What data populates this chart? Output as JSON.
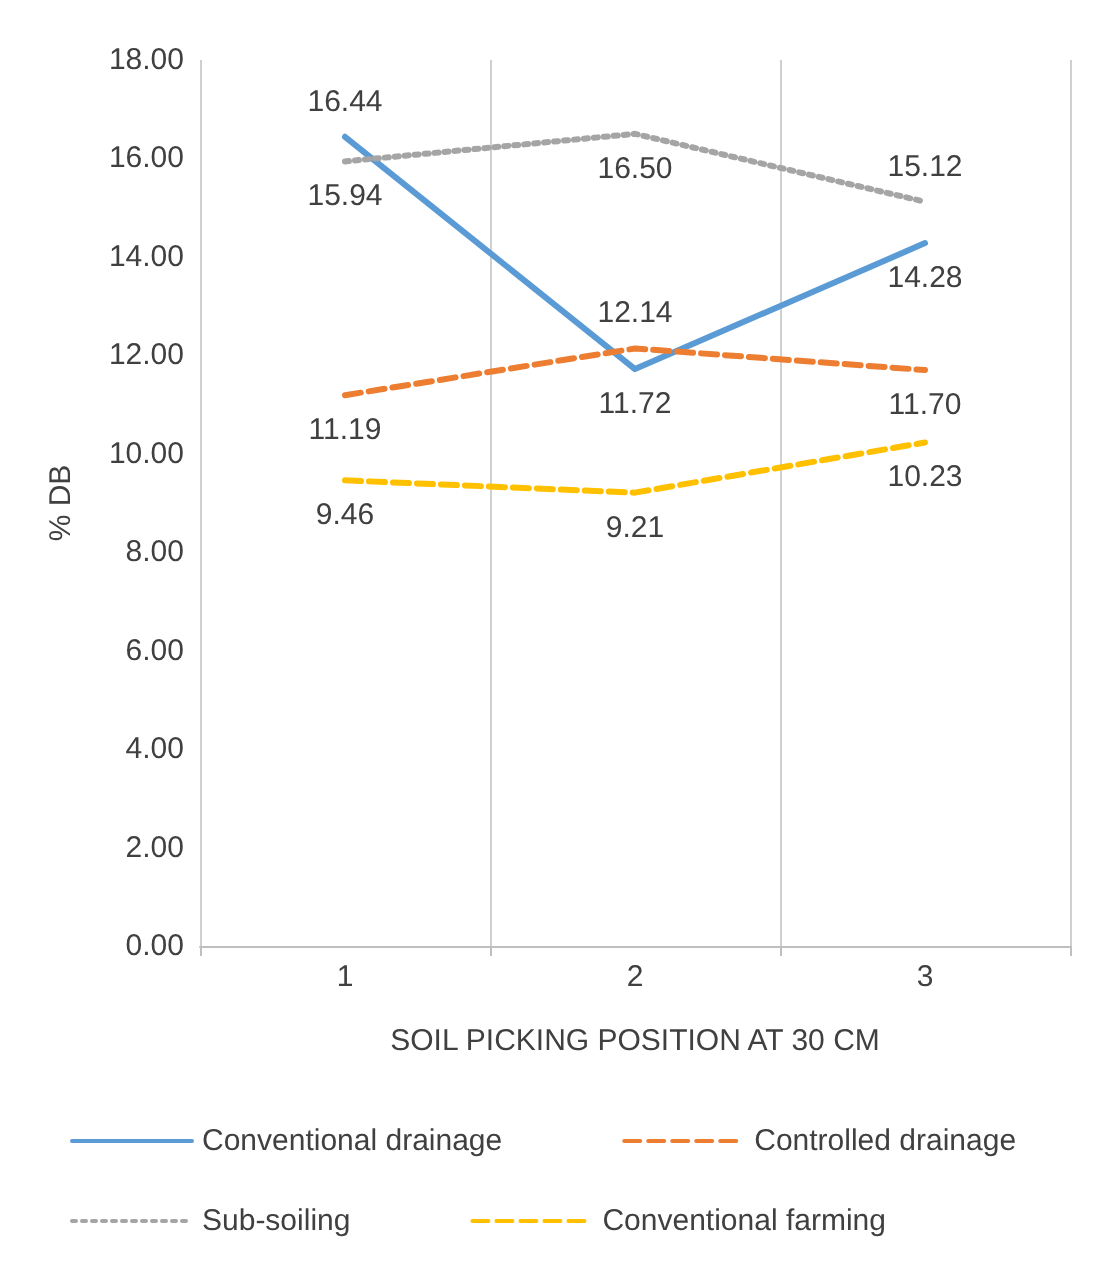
{
  "chart_data": {
    "type": "line",
    "xlabel": "SOIL PICKING POSITION AT 30 CM",
    "ylabel": "% DB",
    "categories": [
      "1",
      "2",
      "3"
    ],
    "series": [
      {
        "name": "Conventional drainage",
        "color": "#5b9bd5",
        "line_style": "solid",
        "values": [
          16.44,
          11.72,
          14.28
        ],
        "value_labels": [
          "16.44",
          "11.72",
          "14.28"
        ]
      },
      {
        "name": "Controlled drainage",
        "color": "#ed7d31",
        "line_style": "dashed",
        "values": [
          11.19,
          12.14,
          11.7
        ],
        "value_labels": [
          "11.19",
          "12.14",
          "11.70"
        ]
      },
      {
        "name": "Sub-soiling",
        "color": "#a5a5a5",
        "line_style": "dotted",
        "values": [
          15.94,
          16.5,
          15.12
        ],
        "value_labels": [
          "15.94",
          "16.50",
          "15.12"
        ]
      },
      {
        "name": "Conventional farming",
        "color": "#ffc000",
        "line_style": "dashed",
        "values": [
          9.46,
          9.21,
          10.23
        ],
        "value_labels": [
          "9.46",
          "9.21",
          "10.23"
        ]
      }
    ],
    "ylim": [
      0,
      18
    ],
    "yticks": [
      {
        "value": 0,
        "label": "0.00"
      },
      {
        "value": 2,
        "label": "2.00"
      },
      {
        "value": 4,
        "label": "4.00"
      },
      {
        "value": 6,
        "label": "6.00"
      },
      {
        "value": 8,
        "label": "8.00"
      },
      {
        "value": 10,
        "label": "10.00"
      },
      {
        "value": 12,
        "label": "12.00"
      },
      {
        "value": 14,
        "label": "14.00"
      },
      {
        "value": 16,
        "label": "16.00"
      },
      {
        "value": 18,
        "label": "18.00"
      }
    ],
    "grid": "x",
    "legend": "bottom",
    "marker": "none"
  }
}
